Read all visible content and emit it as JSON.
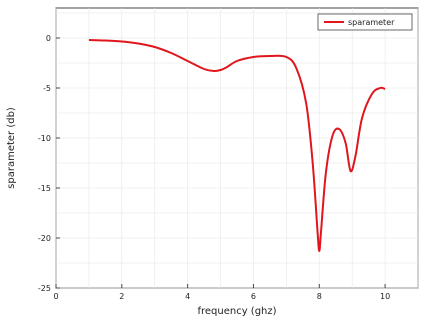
{
  "chart_data": {
    "type": "line",
    "xlabel": "frequency (ghz)",
    "ylabel": "sparameter (db)",
    "xlim": [
      0,
      11
    ],
    "ylim": [
      -25,
      3
    ],
    "xticks": [
      0,
      2,
      4,
      6,
      8,
      10
    ],
    "yticks": [
      0,
      -5,
      -10,
      -15,
      -20,
      -25
    ],
    "grid": true,
    "legend_position": "top-right",
    "series": [
      {
        "name": "sparameter",
        "color": "#e0161c",
        "x": [
          1,
          1.5,
          2,
          2.5,
          3,
          3.5,
          4,
          4.5,
          4.8,
          5,
          5.2,
          5.5,
          6,
          6.5,
          7,
          7.3,
          7.6,
          7.8,
          7.95,
          8.0,
          8.05,
          8.2,
          8.4,
          8.6,
          8.8,
          8.95,
          9.1,
          9.3,
          9.6,
          9.85,
          10.0
        ],
        "y": [
          -0.2,
          -0.25,
          -0.35,
          -0.55,
          -0.9,
          -1.5,
          -2.3,
          -3.1,
          -3.3,
          -3.2,
          -2.9,
          -2.3,
          -1.9,
          -1.8,
          -1.9,
          -3.0,
          -6.5,
          -12.5,
          -19.5,
          -21.3,
          -19.5,
          -13.5,
          -9.8,
          -9.1,
          -10.5,
          -13.3,
          -11.8,
          -8.0,
          -5.6,
          -5.0,
          -5.1
        ]
      }
    ]
  }
}
